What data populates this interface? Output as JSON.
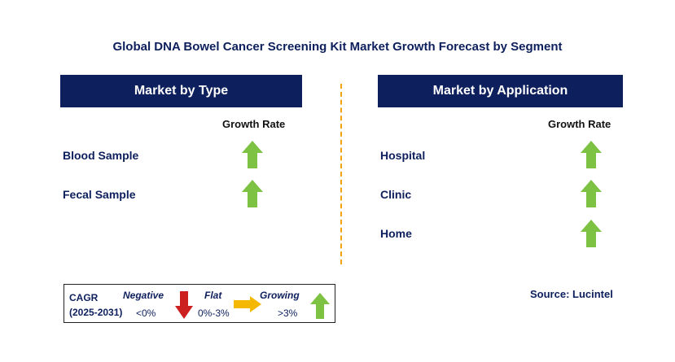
{
  "title": "Global DNA Bowel Cancer Screening Kit Market Growth Forecast by Segment",
  "left_panel": {
    "header": "Market by Type",
    "growth_header": "Growth Rate",
    "rows": [
      {
        "label": "Blood Sample",
        "trend": "growing"
      },
      {
        "label": "Fecal Sample",
        "trend": "growing"
      }
    ]
  },
  "right_panel": {
    "header": "Market by Application",
    "growth_header": "Growth Rate",
    "rows": [
      {
        "label": "Hospital",
        "trend": "growing"
      },
      {
        "label": "Clinic",
        "trend": "growing"
      },
      {
        "label": "Home",
        "trend": "growing"
      }
    ]
  },
  "legend": {
    "cagr_label": "CAGR",
    "period": "(2025-2031)",
    "negative_label": "Negative",
    "negative_range": "<0%",
    "flat_label": "Flat",
    "flat_range": "0%-3%",
    "growing_label": "Growing",
    "growing_range": ">3%"
  },
  "source": "Source: Lucintel",
  "colors": {
    "header_bg": "#0d1f5c",
    "up_arrow": "#7dc242",
    "down_arrow": "#cc1f1f",
    "flat_arrow": "#f5b800",
    "divider": "#f2a20d"
  }
}
